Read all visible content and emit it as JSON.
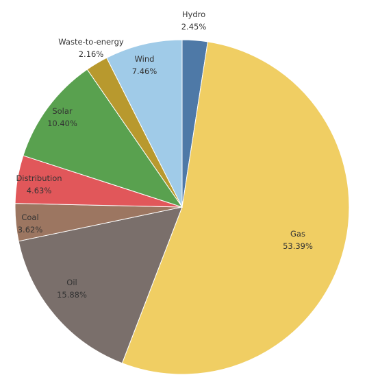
{
  "chart_data": {
    "type": "pie",
    "title": "",
    "start_category": "Hydro",
    "direction": "clockwise",
    "legend": "none",
    "slices": [
      {
        "name": "Hydro",
        "value": 2.45,
        "label": "2.45%",
        "color": "#4e79a7"
      },
      {
        "name": "Gas",
        "value": 53.39,
        "label": "53.39%",
        "color": "#f0ce63"
      },
      {
        "name": "Oil",
        "value": 15.88,
        "label": "15.88%",
        "color": "#7a6f6b"
      },
      {
        "name": "Coal",
        "value": 3.62,
        "label": "3.62%",
        "color": "#9c7661"
      },
      {
        "name": "Distribution",
        "value": 4.63,
        "label": "4.63%",
        "color": "#e1575a"
      },
      {
        "name": "Solar",
        "value": 10.4,
        "label": "10.40%",
        "color": "#59a14f"
      },
      {
        "name": "Waste-to-energy",
        "value": 2.16,
        "label": "2.16%",
        "color": "#b8992e"
      },
      {
        "name": "Wind",
        "value": 7.46,
        "label": "7.46%",
        "color": "#a0cbe8"
      }
    ]
  }
}
